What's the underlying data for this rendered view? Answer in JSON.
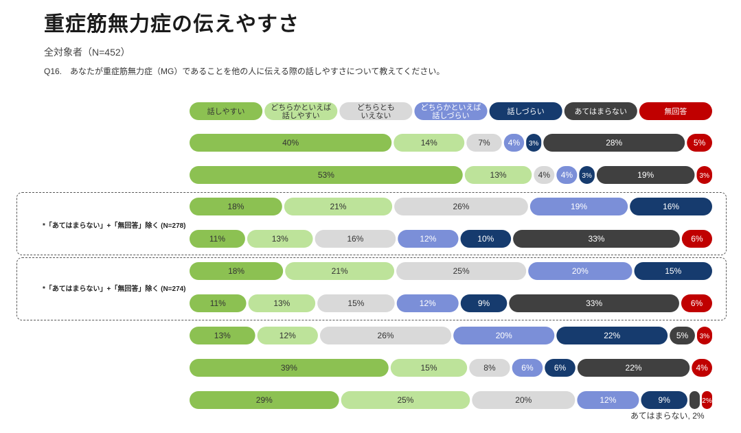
{
  "page": {
    "title": "重症筋無力症の伝えやすさ",
    "subtitle": "全対象者（N=452）",
    "question": "Q16.　あなたが重症筋無力症（MG）であることを他の人に伝える際の話しやすさについて教えてください。"
  },
  "colors": {
    "話しやすい": "#8cc152",
    "どちらかといえば話しやすい": "#bde39a",
    "どちらともいえない": "#d9d9d9",
    "どちらかといえば話しづらい": "#7b8fd8",
    "話しづらい": "#163b6e",
    "あてはまらない": "#404040",
    "無回答": "#c00000"
  },
  "group_labels": [
    "*「あてはまらない」+「無回答」除く (N=278)",
    "*「あてはまらない」+「無回答」除く (N=274)"
  ],
  "footnote": "あてはまらない, 2%",
  "chart_data": {
    "type": "bar",
    "orientation": "horizontal-stacked-100",
    "legend": [
      {
        "key": "話しやすい",
        "lines": [
          "話しやすい"
        ]
      },
      {
        "key": "どちらかといえば話しやすい",
        "lines": [
          "どちらかといえば",
          "話しやすい"
        ]
      },
      {
        "key": "どちらともいえない",
        "lines": [
          "どちらとも",
          "いえない"
        ]
      },
      {
        "key": "どちらかといえば話しづらい",
        "lines": [
          "どちらかといえば",
          "話しづらい"
        ]
      },
      {
        "key": "話しづらい",
        "lines": [
          "話しづらい"
        ]
      },
      {
        "key": "あてはまらない",
        "lines": [
          "あてはまらない"
        ]
      },
      {
        "key": "無回答",
        "lines": [
          "無回答"
        ]
      }
    ],
    "rows": [
      {
        "values": [
          40,
          14,
          7,
          4,
          3,
          28,
          5
        ],
        "labels": [
          "40%",
          "14%",
          "7%",
          "4%",
          "3%",
          "28%",
          "5%"
        ]
      },
      {
        "values": [
          53,
          13,
          4,
          4,
          3,
          19,
          3
        ],
        "labels": [
          "53%",
          "13%",
          "4%",
          "4%",
          "3%",
          "19%",
          "3%"
        ]
      },
      {
        "values": [
          18,
          21,
          26,
          19,
          16
        ],
        "labels": [
          "18%",
          "21%",
          "26%",
          "19%",
          "16%"
        ],
        "excluded": true
      },
      {
        "values": [
          11,
          13,
          16,
          12,
          10,
          33,
          6
        ],
        "labels": [
          "11%",
          "13%",
          "16%",
          "12%",
          "10%",
          "33%",
          "6%"
        ]
      },
      {
        "values": [
          18,
          21,
          25,
          20,
          15
        ],
        "labels": [
          "18%",
          "21%",
          "25%",
          "20%",
          "15%"
        ],
        "excluded": true
      },
      {
        "values": [
          11,
          13,
          15,
          12,
          9,
          33,
          6
        ],
        "labels": [
          "11%",
          "13%",
          "15%",
          "12%",
          "9%",
          "33%",
          "6%"
        ]
      },
      {
        "values": [
          13,
          12,
          26,
          20,
          22,
          5,
          3
        ],
        "labels": [
          "13%",
          "12%",
          "26%",
          "20%",
          "22%",
          "5%",
          "3%"
        ]
      },
      {
        "values": [
          39,
          15,
          8,
          6,
          6,
          22,
          4
        ],
        "labels": [
          "39%",
          "15%",
          "8%",
          "6%",
          "6%",
          "22%",
          "4%"
        ]
      },
      {
        "values": [
          29,
          25,
          20,
          12,
          9,
          2,
          2
        ],
        "labels": [
          "29%",
          "25%",
          "20%",
          "12%",
          "9%",
          "",
          "2%"
        ]
      }
    ]
  }
}
